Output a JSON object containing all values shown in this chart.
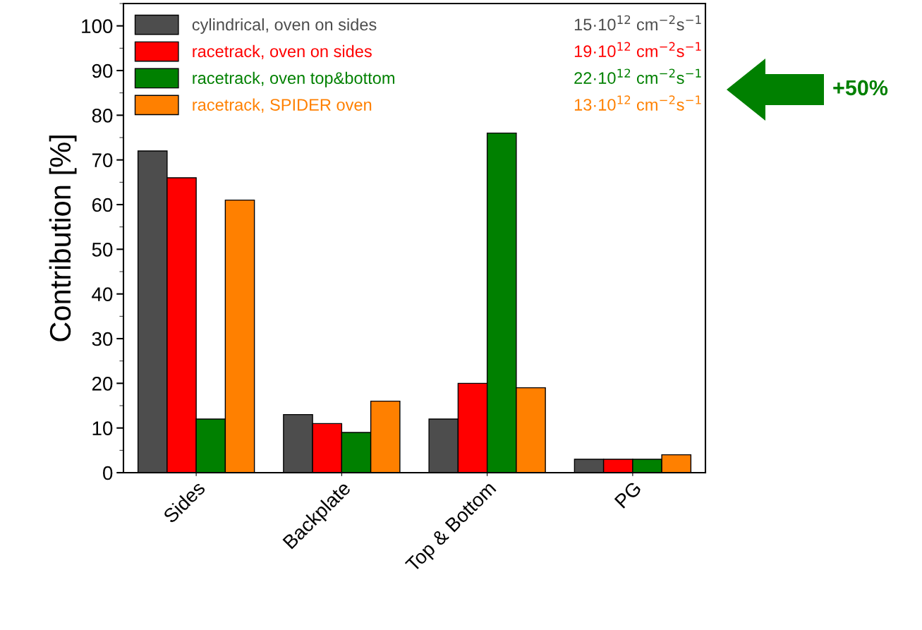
{
  "chart_data": {
    "type": "bar",
    "ylabel": "Contribution [%]",
    "categories": [
      "Sides",
      "Backplate",
      "Top & Bottom",
      "PG"
    ],
    "series": [
      {
        "name": "cylindrical, oven on sides",
        "color": "#4d4d4d",
        "values": [
          72,
          13,
          12,
          3
        ]
      },
      {
        "name": "racetrack, oven on sides",
        "color": "#ff0000",
        "values": [
          66,
          11,
          20,
          3
        ]
      },
      {
        "name": "racetrack, oven top&bottom",
        "color": "#008000",
        "values": [
          12,
          9,
          76,
          3
        ]
      },
      {
        "name": "racetrack, SPIDER oven",
        "color": "#ff8000",
        "values": [
          61,
          16,
          19,
          4
        ]
      }
    ],
    "annotations": [
      "15·10$^{12}$ cm$^{−2}$s$^{−1}$",
      "19·10$^{12}$ cm$^{−2}$s$^{−1}$",
      "22·10$^{12}$ cm$^{−2}$s$^{−1}$",
      "13·10$^{12}$ cm$^{−2}$s$^{−1}$",
      "+50%"
    ],
    "ylim": [
      0,
      105
    ],
    "yticks": [
      0,
      10,
      20,
      30,
      40,
      50,
      60,
      70,
      80,
      90,
      100
    ],
    "grid": false,
    "legend": "top left"
  }
}
